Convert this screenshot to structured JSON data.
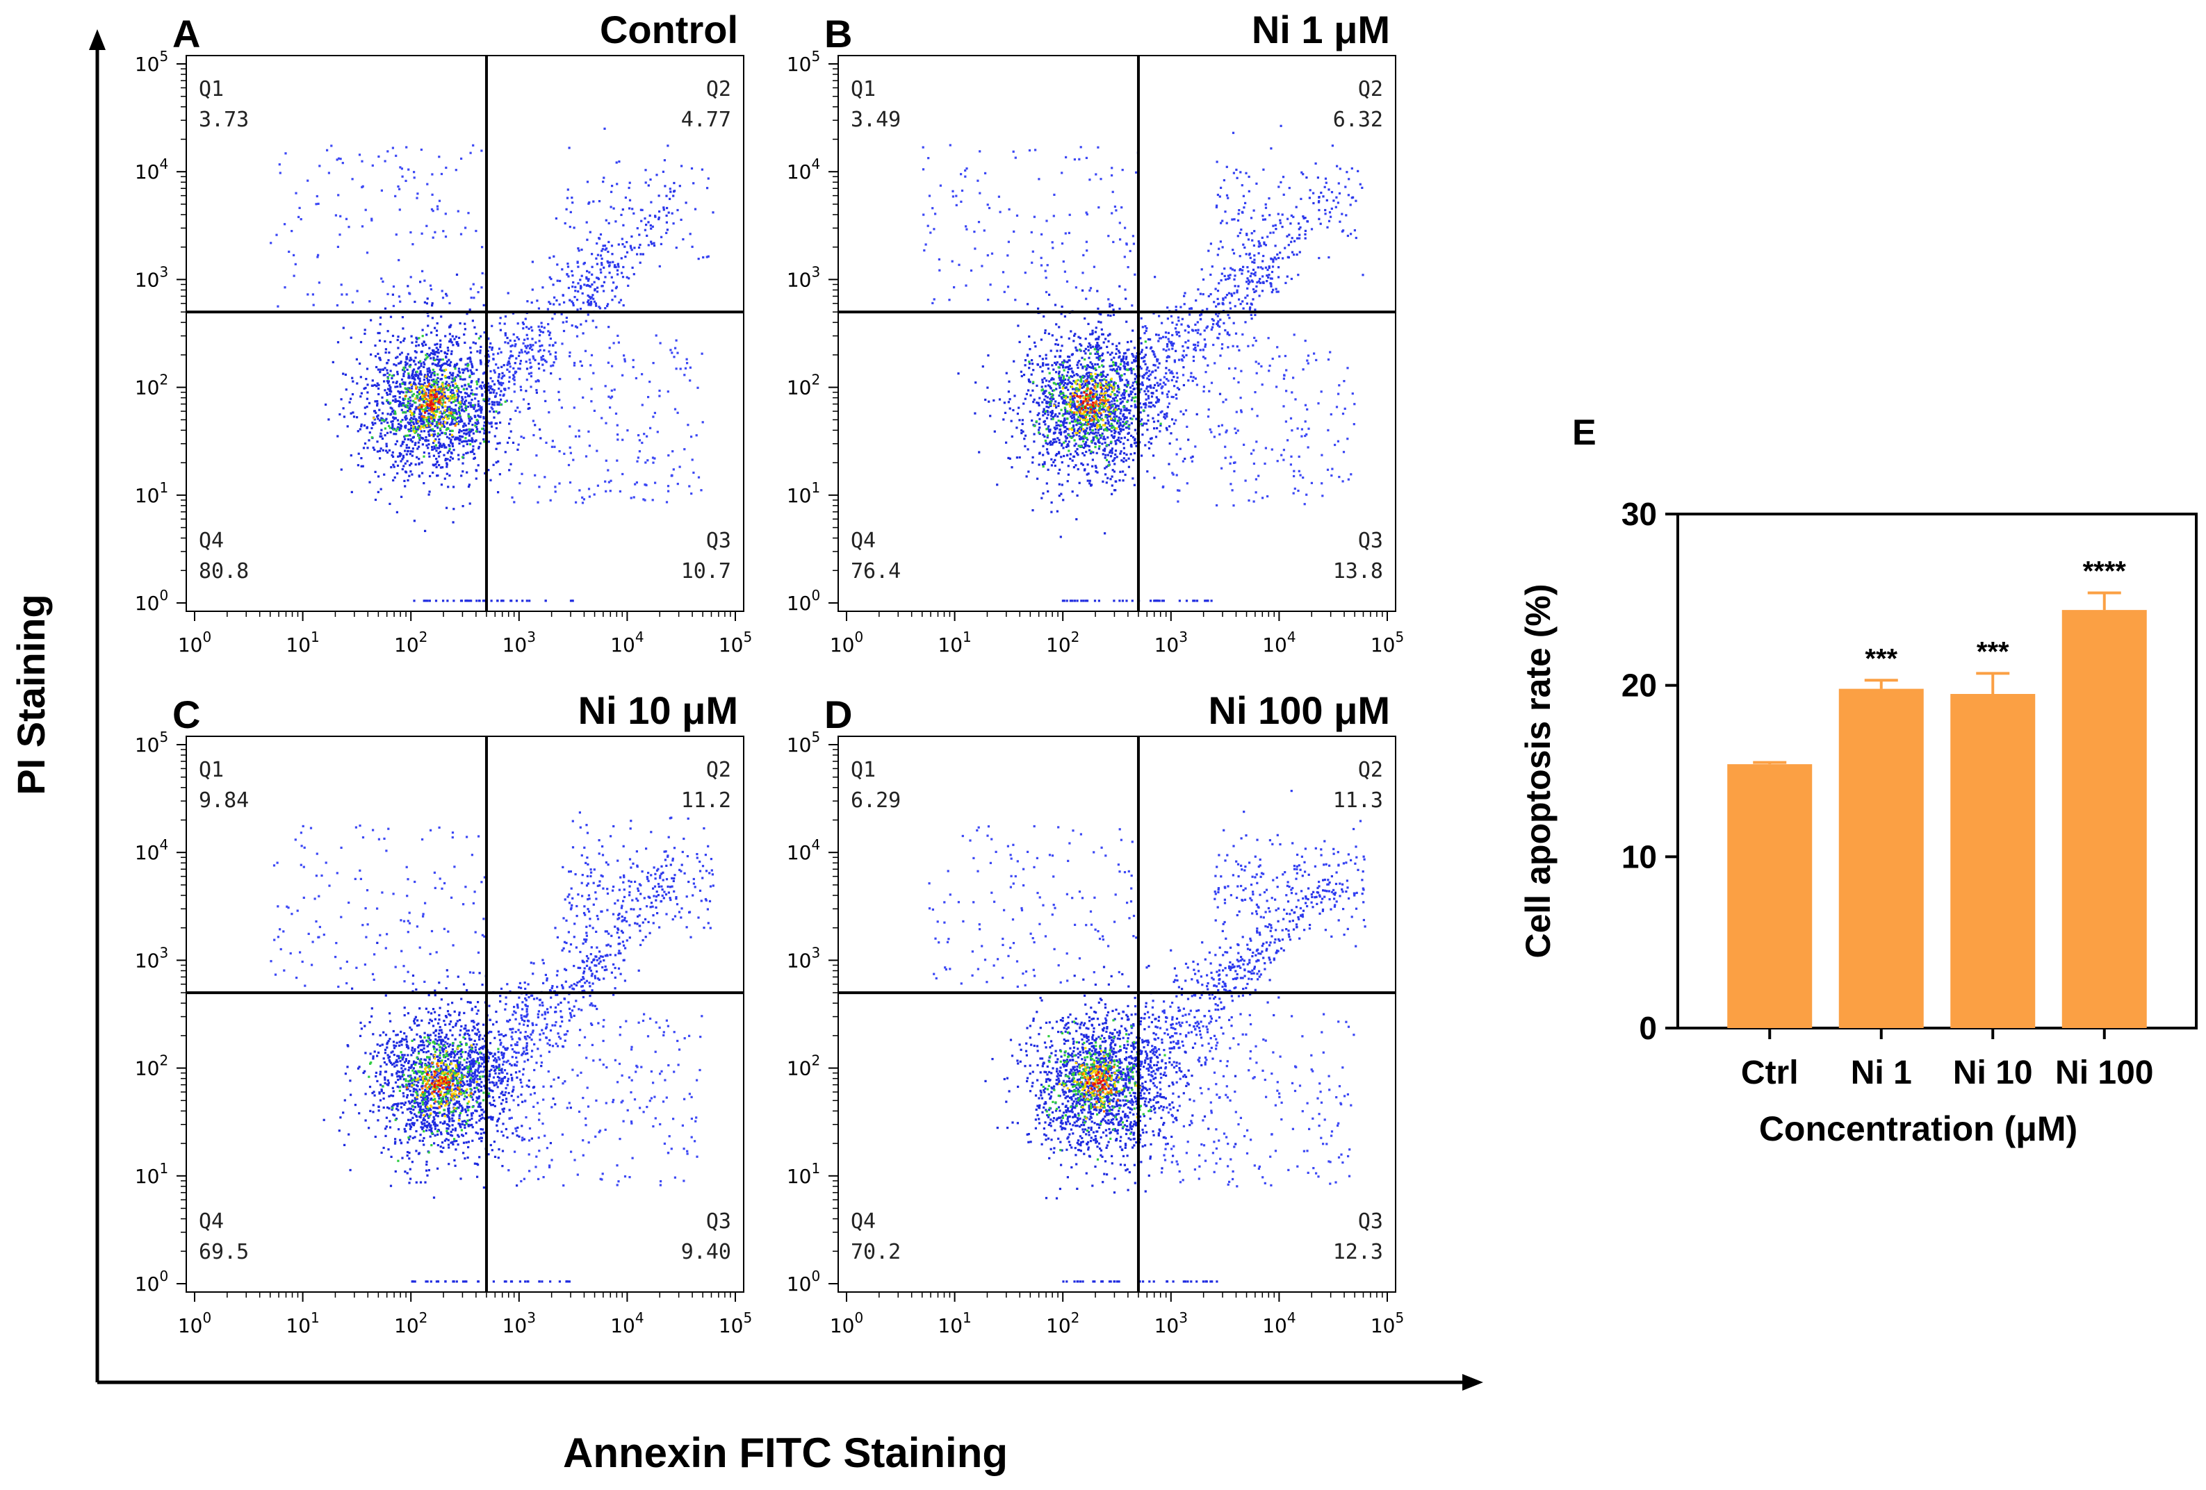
{
  "axis_labels": {
    "y": "PI Staining",
    "x": "Annexin FITC Staining"
  },
  "flow_panels": [
    {
      "letter": "A",
      "title": "Control",
      "quadrants": [
        {
          "label": "Q1",
          "value": "3.73"
        },
        {
          "label": "Q2",
          "value": "4.77"
        },
        {
          "label": "Q3",
          "value": "10.7"
        },
        {
          "label": "Q4",
          "value": "80.8"
        }
      ]
    },
    {
      "letter": "B",
      "title": "Ni 1 μM",
      "quadrants": [
        {
          "label": "Q1",
          "value": "3.49"
        },
        {
          "label": "Q2",
          "value": "6.32"
        },
        {
          "label": "Q3",
          "value": "13.8"
        },
        {
          "label": "Q4",
          "value": "76.4"
        }
      ]
    },
    {
      "letter": "C",
      "title": "Ni 10 μM",
      "quadrants": [
        {
          "label": "Q1",
          "value": "9.84"
        },
        {
          "label": "Q2",
          "value": "11.2"
        },
        {
          "label": "Q3",
          "value": "9.40"
        },
        {
          "label": "Q4",
          "value": "69.5"
        }
      ]
    },
    {
      "letter": "D",
      "title": "Ni 100 μM",
      "quadrants": [
        {
          "label": "Q1",
          "value": "6.29"
        },
        {
          "label": "Q2",
          "value": "11.3"
        },
        {
          "label": "Q3",
          "value": "12.3"
        },
        {
          "label": "Q4",
          "value": "70.2"
        }
      ]
    }
  ],
  "flow_ticks": [
    {
      "base": "10",
      "exp": "0"
    },
    {
      "base": "10",
      "exp": "1"
    },
    {
      "base": "10",
      "exp": "2"
    },
    {
      "base": "10",
      "exp": "3"
    },
    {
      "base": "10",
      "exp": "4"
    },
    {
      "base": "10",
      "exp": "5"
    }
  ],
  "chart_data": [
    {
      "type": "scatter",
      "description_scale": "log",
      "xlim": [
        1,
        100000
      ],
      "ylim": [
        1,
        100000
      ],
      "gate": {
        "x": 500,
        "y": 500
      },
      "panels": [
        "A",
        "B",
        "C",
        "D"
      ]
    },
    {
      "type": "bar",
      "panel_letter": "E",
      "categories": [
        "Ctrl",
        "Ni 1",
        "Ni 10",
        "Ni 100"
      ],
      "values": [
        15.4,
        19.8,
        19.5,
        24.4
      ],
      "errors": [
        0.1,
        0.5,
        1.2,
        1.0
      ],
      "significance": [
        "",
        "***",
        "***",
        "****"
      ],
      "xlabel": "Concentration (μM)",
      "ylabel": "Cell apoptosis rate (%)",
      "ylim": [
        0,
        30
      ],
      "yticks": [
        "0",
        "10",
        "20",
        "30"
      ],
      "bar_color": "#fba044"
    }
  ]
}
